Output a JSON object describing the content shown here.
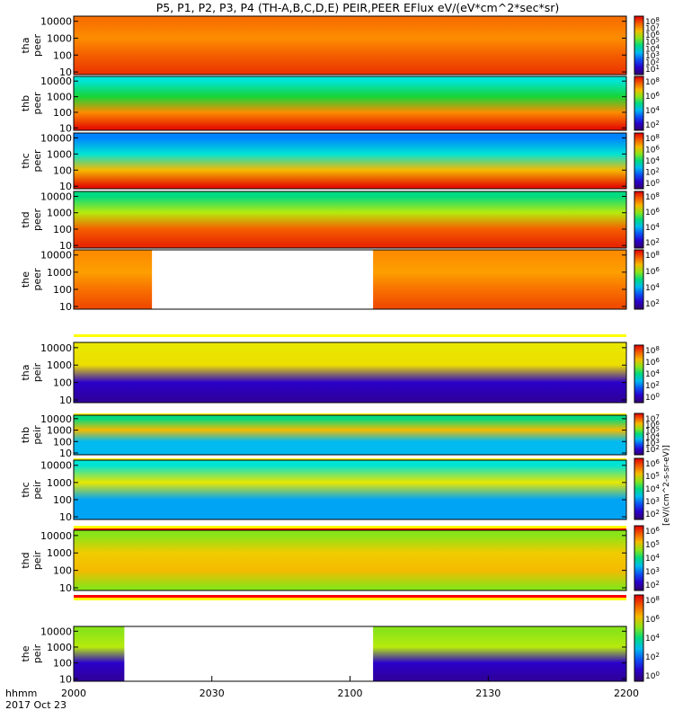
{
  "chart_data": {
    "type": "heatmap",
    "title": "P5, P1, P2, P3, P4 (TH-A,B,C,D,E) PEIR,PEER EFlux eV/(eV*cm^2*sec*sr)",
    "x_ticks": [
      "2000",
      "2030",
      "2100",
      "2130",
      "2200"
    ],
    "x_labels": [
      "hhmm",
      "2017 Oct 23"
    ],
    "x_range": [
      "2000",
      "2200"
    ],
    "y_scale": "log",
    "y_range": [
      7,
      20000
    ],
    "y_ticks": [
      "10000",
      "1000",
      "100",
      "10"
    ],
    "colorbar_label": "[eV/(cm^2-s-sr-eV)]",
    "panels": [
      {
        "id": "tha-peer",
        "probe": "tha",
        "species": "peer",
        "flag_bar": [],
        "cb_ticks": [
          "10^8",
          "10^7",
          "10^6",
          "10^5",
          "10^4",
          "10^3",
          "10^2",
          "10^1"
        ],
        "bands": [
          {
            "e": 10000,
            "level": 6.8
          },
          {
            "e": 1000,
            "level": 6.5
          },
          {
            "e": 100,
            "level": 7.0
          },
          {
            "e": 10,
            "level": 7.4
          }
        ]
      },
      {
        "id": "thb-peer",
        "probe": "thb",
        "species": "peer",
        "flag_bar": [],
        "cb_ticks": [
          "10^8",
          "10^6",
          "10^4",
          "10^2"
        ],
        "bands": [
          {
            "e": 10000,
            "level": 3.5
          },
          {
            "e": 1000,
            "level": 4.5
          },
          {
            "e": 100,
            "level": 6.5
          },
          {
            "e": 10,
            "level": 7.8
          }
        ]
      },
      {
        "id": "thc-peer",
        "probe": "thc",
        "species": "peer",
        "flag_bar": [],
        "cb_ticks": [
          "10^8",
          "10^6",
          "10^4",
          "10^2",
          "10^0"
        ],
        "bands": [
          {
            "e": 10000,
            "level": 2.5
          },
          {
            "e": 1000,
            "level": 3.5
          },
          {
            "e": 100,
            "level": 6.0
          },
          {
            "e": 10,
            "level": 7.8
          }
        ]
      },
      {
        "id": "thd-peer",
        "probe": "thd",
        "species": "peer",
        "flag_bar": [],
        "cb_ticks": [
          "10^8",
          "10^6",
          "10^4",
          "10^2"
        ],
        "bands": [
          {
            "e": 10000,
            "level": 4.0
          },
          {
            "e": 1000,
            "level": 5.2
          },
          {
            "e": 100,
            "level": 7.0
          },
          {
            "e": 10,
            "level": 7.6
          }
        ]
      },
      {
        "id": "the-peer",
        "probe": "the",
        "species": "peer",
        "flag_bar": [],
        "cb_ticks": [
          "10^8",
          "10^6",
          "10^4",
          "10^2"
        ],
        "gaps": [
          [
            "2017",
            "2105"
          ]
        ],
        "bands": [
          {
            "e": 10000,
            "level": 6.5
          },
          {
            "e": 1000,
            "level": 6.3
          },
          {
            "e": 100,
            "level": 6.8
          },
          {
            "e": 10,
            "level": 7.2
          }
        ]
      },
      {
        "id": "tha-peir",
        "probe": "tha",
        "species": "peir",
        "flag_bar": [
          "yellow"
        ],
        "cb_ticks": [
          "10^8",
          "10^6",
          "10^4",
          "10^2",
          "10^0"
        ],
        "bands": [
          {
            "e": 10000,
            "level": 5.5
          },
          {
            "e": 1000,
            "level": 5.6
          },
          {
            "e": 100,
            "level": 1.0
          },
          {
            "e": 10,
            "level": 0.5
          }
        ]
      },
      {
        "id": "thb-peir",
        "probe": "thb",
        "species": "peir",
        "flag_bar": [
          "yellow",
          "red"
        ],
        "cb_ticks": [
          "10^7",
          "10^6",
          "10^5",
          "10^4",
          "10^3",
          "10^2"
        ],
        "bands": [
          {
            "e": 10000,
            "level": 4.0
          },
          {
            "e": 1000,
            "level": 6.0
          },
          {
            "e": 100,
            "level": 3.0
          },
          {
            "e": 10,
            "level": 3.0
          }
        ]
      },
      {
        "id": "thc-peir",
        "probe": "thc",
        "species": "peir",
        "flag_bar": [
          "yellow",
          "red"
        ],
        "cb_ticks": [
          "10^6",
          "10^5",
          "10^4",
          "10^3",
          "10^2"
        ],
        "bands": [
          {
            "e": 10000,
            "level": 3.5
          },
          {
            "e": 1000,
            "level": 5.5
          },
          {
            "e": 100,
            "level": 2.8
          },
          {
            "e": 10,
            "level": 2.8
          }
        ]
      },
      {
        "id": "thd-peir",
        "probe": "thd",
        "species": "peir",
        "flag_bar": [
          "yellow",
          "red"
        ],
        "cb_ticks": [
          "10^6",
          "10^5",
          "10^4",
          "10^3",
          "10^2"
        ],
        "bands": [
          {
            "e": 10000,
            "level": 5.0
          },
          {
            "e": 1000,
            "level": 5.8
          },
          {
            "e": 100,
            "level": 6.0
          },
          {
            "e": 10,
            "level": 5.0
          }
        ]
      },
      {
        "id": "the-peir",
        "probe": "the",
        "species": "peir",
        "flag_bar": [
          "red",
          "yellow"
        ],
        "cb_ticks": [
          "10^8",
          "10^6",
          "10^4",
          "10^2",
          "10^0"
        ],
        "gaps": [
          [
            "2011",
            "2105"
          ]
        ],
        "bands": [
          {
            "e": 10000,
            "level": 5.0
          },
          {
            "e": 1000,
            "level": 5.2
          },
          {
            "e": 100,
            "level": 1.0
          },
          {
            "e": 10,
            "level": 0.5
          }
        ]
      }
    ]
  }
}
